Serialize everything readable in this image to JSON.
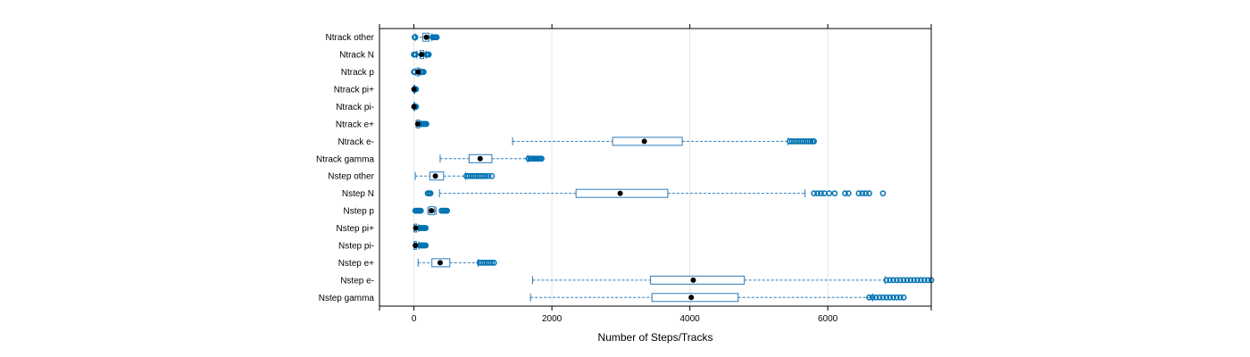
{
  "chart_data": {
    "type": "boxplot",
    "orientation": "horizontal",
    "xlabel": "Number of Steps/Tracks",
    "xlim": [
      -500,
      7500
    ],
    "xticks": [
      0,
      2000,
      4000,
      6000
    ],
    "xtick_labels": [
      "0",
      "2000",
      "4000",
      "6000"
    ],
    "grid": "vertical",
    "colors": {
      "box": "#2b7bba",
      "outlier": "#0072b2",
      "median": "#000000",
      "frame": "#000000",
      "grid": "#e6e6e6"
    },
    "categories": [
      {
        "label": "Ntrack other",
        "whisker_low": 20,
        "q1": 130,
        "median": 180,
        "q3": 220,
        "whisker_high": 260,
        "outliers": [
          10,
          20,
          270,
          290,
          310,
          320,
          330
        ]
      },
      {
        "label": "Ntrack N",
        "whisker_low": 40,
        "q1": 90,
        "median": 110,
        "q3": 140,
        "whisker_high": 175,
        "outliers": [
          0,
          15,
          25,
          180,
          195,
          205,
          215
        ]
      },
      {
        "label": "Ntrack p",
        "whisker_low": 20,
        "q1": 45,
        "median": 60,
        "q3": 75,
        "whisker_high": 95,
        "outliers": [
          0,
          10,
          100,
          110,
          120,
          130,
          140
        ]
      },
      {
        "label": "Ntrack pi+",
        "whisker_low": 0,
        "q1": 0,
        "median": 0,
        "q3": 0,
        "whisker_high": 0,
        "outliers": [
          5,
          10,
          15,
          20,
          25,
          30
        ]
      },
      {
        "label": "Ntrack pi-",
        "whisker_low": 0,
        "q1": 0,
        "median": 0,
        "q3": 0,
        "whisker_high": 0,
        "outliers": [
          5,
          10,
          15,
          20,
          25,
          30
        ]
      },
      {
        "label": "Ntrack e+",
        "whisker_low": 30,
        "q1": 45,
        "median": 55,
        "q3": 75,
        "whisker_high": 95,
        "outliers": [
          100,
          120,
          135,
          150,
          160,
          170,
          180
        ]
      },
      {
        "label": "Ntrack e-",
        "whisker_low": 1430,
        "q1": 2880,
        "median": 3340,
        "q3": 3890,
        "whisker_high": 5420,
        "outliers": [
          5450,
          5480,
          5510,
          5540,
          5570,
          5600,
          5630,
          5660,
          5690,
          5720,
          5750,
          5780,
          5800
        ]
      },
      {
        "label": "Ntrack gamma",
        "whisker_low": 380,
        "q1": 800,
        "median": 960,
        "q3": 1130,
        "whisker_high": 1650,
        "outliers": [
          1660,
          1690,
          1710,
          1730,
          1750,
          1770,
          1790,
          1810,
          1830,
          1850
        ]
      },
      {
        "label": "Nstep other",
        "whisker_low": 20,
        "q1": 230,
        "median": 310,
        "q3": 430,
        "whisker_high": 750,
        "outliers": [
          760,
          790,
          820,
          850,
          880,
          910,
          940,
          970,
          1000,
          1040,
          1080,
          1130
        ]
      },
      {
        "label": "Nstep N",
        "whisker_low": 370,
        "q1": 2350,
        "median": 2990,
        "q3": 3680,
        "whisker_high": 5670,
        "outliers": [
          200,
          220,
          240,
          5800,
          5850,
          5900,
          5950,
          6020,
          6100,
          6250,
          6300,
          6450,
          6500,
          6550,
          6600,
          6800
        ]
      },
      {
        "label": "Nstep p",
        "whisker_low": 200,
        "q1": 220,
        "median": 255,
        "q3": 300,
        "whisker_high": 320,
        "outliers": [
          20,
          40,
          60,
          80,
          100,
          400,
          420,
          440,
          460,
          480
        ]
      },
      {
        "label": "Nstep pi+",
        "whisker_low": 0,
        "q1": 10,
        "median": 25,
        "q3": 40,
        "whisker_high": 70,
        "outliers": [
          80,
          95,
          110,
          125,
          140,
          155,
          170
        ]
      },
      {
        "label": "Nstep pi-",
        "whisker_low": 0,
        "q1": 10,
        "median": 20,
        "q3": 35,
        "whisker_high": 70,
        "outliers": [
          80,
          95,
          110,
          125,
          140,
          155,
          170
        ]
      },
      {
        "label": "Nstep e+",
        "whisker_low": 60,
        "q1": 260,
        "median": 380,
        "q3": 520,
        "whisker_high": 930,
        "outliers": [
          950,
          980,
          1010,
          1040,
          1070,
          1100,
          1130,
          1160
        ]
      },
      {
        "label": "Nstep e-",
        "whisker_low": 1720,
        "q1": 3430,
        "median": 4050,
        "q3": 4790,
        "whisker_high": 6830,
        "outliers": [
          6850,
          6900,
          6950,
          7000,
          7050,
          7100,
          7150,
          7200,
          7250,
          7300,
          7350,
          7400,
          7450,
          7500
        ]
      },
      {
        "label": "Nstep gamma",
        "whisker_low": 1690,
        "q1": 3450,
        "median": 4020,
        "q3": 4700,
        "whisker_high": 6650,
        "outliers": [
          6600,
          6650,
          6700,
          6750,
          6800,
          6850,
          6900,
          6950,
          7000,
          7050,
          7100
        ]
      }
    ]
  }
}
